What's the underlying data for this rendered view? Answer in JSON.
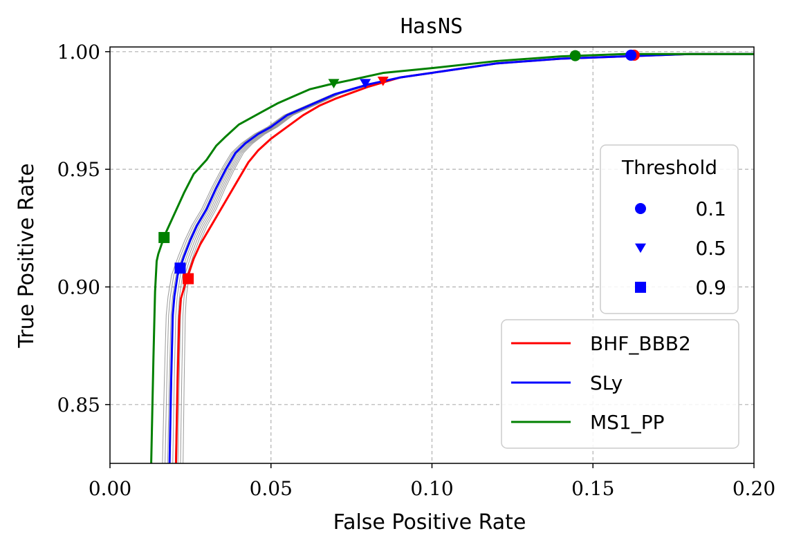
{
  "chart_data": {
    "type": "line",
    "title": "HasNS",
    "xlabel": "False Positive Rate",
    "ylabel": "True Positive Rate",
    "xlim": [
      0.0,
      0.2
    ],
    "ylim": [
      0.825,
      1.002
    ],
    "xticks": [
      "0.00",
      "0.05",
      "0.10",
      "0.15",
      "0.20"
    ],
    "yticks": [
      "0.85",
      "0.90",
      "0.95",
      "1.00"
    ],
    "grid": true,
    "series": [
      {
        "name": "BHF_BBB2",
        "color": "#ff0000",
        "x": [
          0.0205,
          0.021,
          0.0215,
          0.022,
          0.024,
          0.026,
          0.028,
          0.031,
          0.034,
          0.037,
          0.04,
          0.043,
          0.046,
          0.05,
          0.055,
          0.06,
          0.065,
          0.07,
          0.08,
          0.09,
          0.1,
          0.12,
          0.14,
          0.16,
          0.18,
          0.2
        ],
        "y": [
          0.825,
          0.86,
          0.886,
          0.895,
          0.904,
          0.912,
          0.918,
          0.925,
          0.932,
          0.939,
          0.946,
          0.953,
          0.958,
          0.963,
          0.968,
          0.973,
          0.977,
          0.98,
          0.985,
          0.989,
          0.991,
          0.995,
          0.997,
          0.998,
          0.999,
          0.999
        ]
      },
      {
        "name": "SLy",
        "color": "#0000ff",
        "x": [
          0.0185,
          0.019,
          0.0195,
          0.02,
          0.021,
          0.023,
          0.025,
          0.027,
          0.03,
          0.033,
          0.036,
          0.039,
          0.042,
          0.046,
          0.05,
          0.055,
          0.06,
          0.065,
          0.07,
          0.08,
          0.09,
          0.1,
          0.12,
          0.14,
          0.16,
          0.18,
          0.2
        ],
        "y": [
          0.825,
          0.86,
          0.888,
          0.896,
          0.905,
          0.913,
          0.92,
          0.926,
          0.933,
          0.942,
          0.95,
          0.957,
          0.961,
          0.965,
          0.968,
          0.973,
          0.976,
          0.979,
          0.982,
          0.986,
          0.989,
          0.991,
          0.995,
          0.997,
          0.998,
          0.999,
          0.999
        ]
      },
      {
        "name": "MS1_PP",
        "color": "#008000",
        "x": [
          0.0128,
          0.0135,
          0.014,
          0.0145,
          0.015,
          0.017,
          0.02,
          0.023,
          0.026,
          0.03,
          0.033,
          0.036,
          0.04,
          0.044,
          0.048,
          0.052,
          0.057,
          0.062,
          0.068,
          0.075,
          0.085,
          0.1,
          0.12,
          0.14,
          0.16,
          0.18,
          0.2
        ],
        "y": [
          0.825,
          0.87,
          0.898,
          0.911,
          0.914,
          0.922,
          0.931,
          0.94,
          0.948,
          0.954,
          0.96,
          0.964,
          0.969,
          0.972,
          0.975,
          0.978,
          0.981,
          0.984,
          0.986,
          0.988,
          0.991,
          0.993,
          0.996,
          0.998,
          0.999,
          0.999,
          0.999
        ]
      }
    ],
    "gray_curves": {
      "color": "#808080",
      "offsets": [
        0.0008,
        0.0016,
        0.0024,
        0.0032,
        0.004,
        0.0048,
        0.0056,
        0.0064,
        0.0072
      ]
    },
    "markers": [
      {
        "series": "BHF_BBB2",
        "threshold": 0.1,
        "shape": "circle",
        "x": 0.1628,
        "y": 0.9985,
        "color": "#ff0000"
      },
      {
        "series": "SLy",
        "threshold": 0.1,
        "shape": "circle",
        "x": 0.1618,
        "y": 0.9985,
        "color": "#0000ff"
      },
      {
        "series": "MS1_PP",
        "threshold": 0.1,
        "shape": "circle",
        "x": 0.1445,
        "y": 0.9983,
        "color": "#008000"
      },
      {
        "series": "BHF_BBB2",
        "threshold": 0.5,
        "shape": "triangle",
        "x": 0.0848,
        "y": 0.9875,
        "color": "#ff0000"
      },
      {
        "series": "SLy",
        "threshold": 0.5,
        "shape": "triangle",
        "x": 0.0793,
        "y": 0.9865,
        "color": "#0000ff"
      },
      {
        "series": "MS1_PP",
        "threshold": 0.5,
        "shape": "triangle",
        "x": 0.0695,
        "y": 0.9865,
        "color": "#008000"
      },
      {
        "series": "BHF_BBB2",
        "threshold": 0.9,
        "shape": "square",
        "x": 0.0243,
        "y": 0.9035,
        "color": "#ff0000"
      },
      {
        "series": "SLy",
        "threshold": 0.9,
        "shape": "square",
        "x": 0.0218,
        "y": 0.908,
        "color": "#0000ff"
      },
      {
        "series": "MS1_PP",
        "threshold": 0.9,
        "shape": "square",
        "x": 0.0168,
        "y": 0.921,
        "color": "#008000"
      }
    ],
    "threshold_legend": {
      "title": "Threshold",
      "items": [
        {
          "shape": "circle",
          "label": "0.1",
          "color": "#0000ff"
        },
        {
          "shape": "triangle",
          "label": "0.5",
          "color": "#0000ff"
        },
        {
          "shape": "square",
          "label": "0.9",
          "color": "#0000ff"
        }
      ],
      "position": "center-right"
    },
    "series_legend": {
      "items": [
        {
          "label": "BHF_BBB2",
          "color": "#ff0000"
        },
        {
          "label": "SLy",
          "color": "#0000ff"
        },
        {
          "label": "MS1_PP",
          "color": "#008000"
        }
      ],
      "position": "lower-right"
    }
  }
}
